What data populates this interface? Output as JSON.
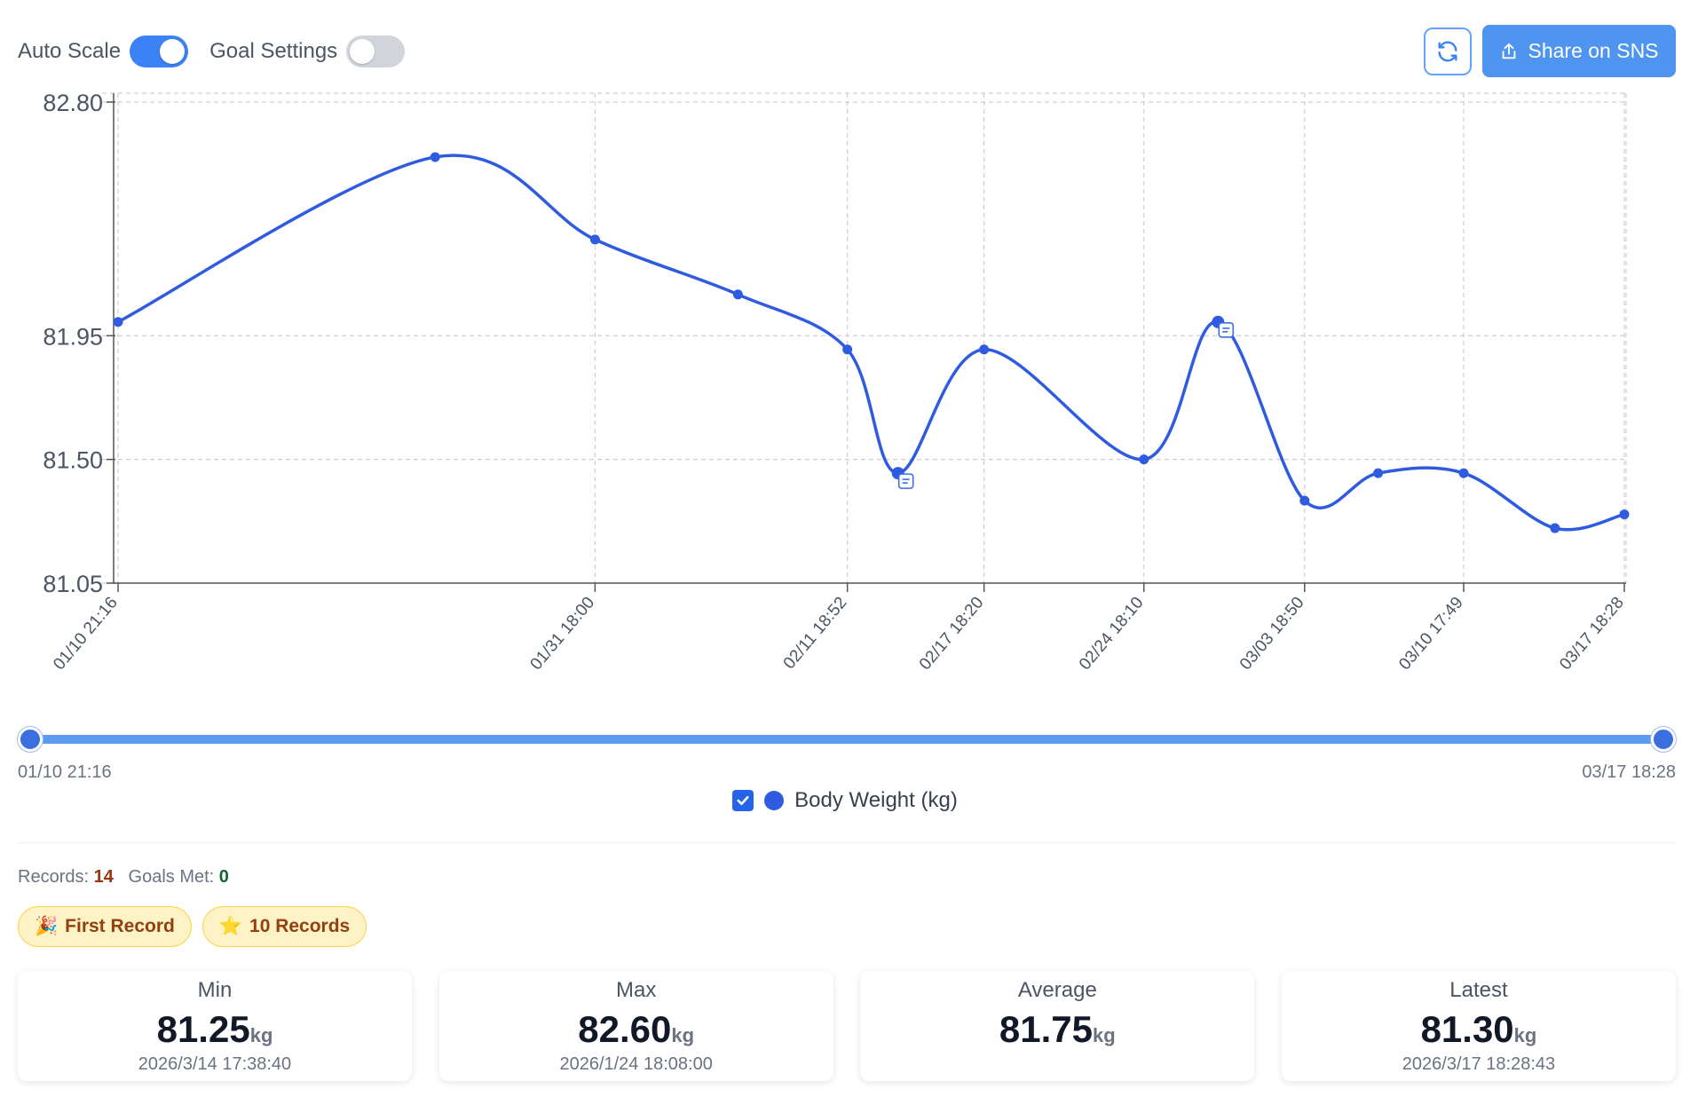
{
  "toolbar": {
    "auto_scale_label": "Auto Scale",
    "auto_scale_on": true,
    "goal_settings_label": "Goal Settings",
    "goal_settings_on": false,
    "share_label": "Share on SNS"
  },
  "range": {
    "start_label": "01/10 21:16",
    "end_label": "03/17 18:28"
  },
  "legend": {
    "label": "Body Weight (kg)",
    "checked": true
  },
  "stats": {
    "records_label": "Records:",
    "records_value": "14",
    "goals_label": "Goals Met:",
    "goals_value": "0"
  },
  "badges": [
    {
      "emoji": "🎉",
      "label": "First Record"
    },
    {
      "emoji": "⭐",
      "label": "10 Records"
    }
  ],
  "cards": [
    {
      "label": "Min",
      "value": "81.25",
      "unit": "kg",
      "time": "2026/3/14 17:38:40"
    },
    {
      "label": "Max",
      "value": "82.60",
      "unit": "kg",
      "time": "2026/1/24 18:08:00"
    },
    {
      "label": "Average",
      "value": "81.75",
      "unit": "kg",
      "time": ""
    },
    {
      "label": "Latest",
      "value": "81.30",
      "unit": "kg",
      "time": "2026/3/17 18:28:43"
    }
  ],
  "colors": {
    "line": "#2f5be0",
    "accent": "#3b82f6",
    "grid": "#cfcfcf"
  },
  "chart_data": {
    "type": "line",
    "series": [
      {
        "name": "Body Weight (kg)",
        "x": [
          "2026-01-10 21:16",
          "2026-01-24 18:08",
          "2026-01-31 18:00",
          "2026-02-07",
          "2026-02-11 18:52",
          "2026-02-14",
          "2026-02-17 18:20",
          "2026-02-24 18:10",
          "2026-02-28",
          "2026-03-03 18:50",
          "2026-03-07",
          "2026-03-10 17:49",
          "2026-03-14 17:38",
          "2026-03-17 18:28"
        ],
        "values": [
          82.0,
          82.6,
          82.3,
          82.1,
          81.9,
          81.45,
          81.9,
          81.5,
          82.0,
          81.35,
          81.45,
          81.45,
          81.25,
          81.3
        ],
        "memos": [
          false,
          false,
          false,
          false,
          false,
          true,
          false,
          false,
          true,
          false,
          false,
          false,
          false,
          false
        ]
      }
    ],
    "x_tick_labels": [
      "01/10 21:16",
      "01/31 18:00",
      "02/11 18:52",
      "02/17 18:20",
      "02/24 18:10",
      "03/03 18:50",
      "03/10 17:49",
      "03/17 18:28"
    ],
    "y_ticks": [
      "82.80",
      "81.95",
      "81.50",
      "81.05"
    ],
    "ylim": [
      81.05,
      82.8
    ],
    "grid": true,
    "legend_position": "bottom-center",
    "xlabel": "",
    "ylabel": ""
  }
}
